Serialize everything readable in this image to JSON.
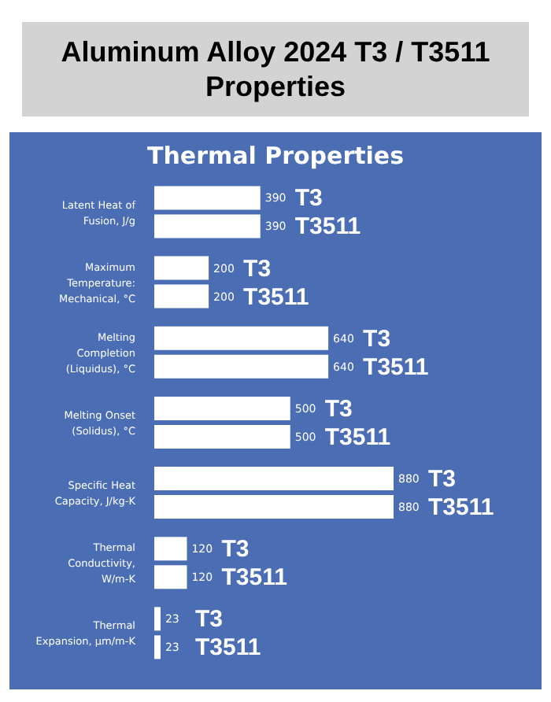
{
  "chart_data": {
    "type": "bar",
    "orientation": "horizontal",
    "title": "Aluminum Alloy 2024 T3 / T3511 Properties",
    "subtitle": "Thermal Properties",
    "categories": [
      "Latent Heat of Fusion, J/g",
      "Maximum Temperature: Mechanical, °C",
      "Melting Completion (Liquidus), °C",
      "Melting Onset (Solidus), °C",
      "Specific Heat Capacity, J/kg-K",
      "Thermal Conductivity, W/m-K",
      "Thermal Expansion, µm/m-K"
    ],
    "series": [
      {
        "name": "T3",
        "color": "#ffffff",
        "values": [
          390,
          200,
          640,
          500,
          880,
          120,
          23
        ]
      },
      {
        "name": "T3511",
        "color": "#ffffff",
        "values": [
          390,
          200,
          640,
          500,
          880,
          120,
          23
        ]
      }
    ],
    "data_labels": true
  }
}
